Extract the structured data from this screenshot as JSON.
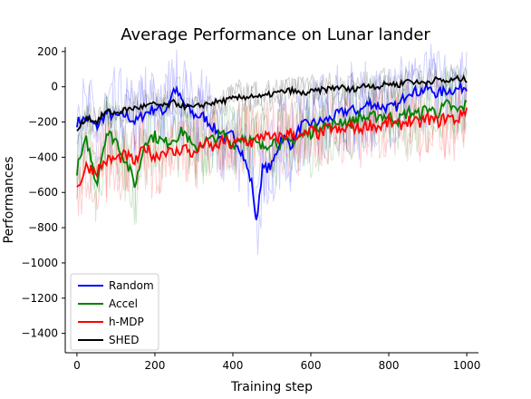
{
  "chart_data": {
    "type": "line",
    "title": "Average Performance on Lunar lander",
    "xlabel": "Training step",
    "ylabel": "Performances",
    "xlim": [
      -30,
      1030
    ],
    "ylim": [
      -1510,
      225
    ],
    "xticks": [
      0,
      200,
      400,
      600,
      800,
      1000
    ],
    "yticks": [
      -1400,
      -1200,
      -1000,
      -800,
      -600,
      -400,
      -200,
      0,
      200
    ],
    "xtick_labels": [
      "0",
      "200",
      "400",
      "600",
      "800",
      "1000"
    ],
    "ytick_labels": [
      "−1400",
      "−1200",
      "−1000",
      "−800",
      "−600",
      "−400",
      "−200",
      "0",
      "200"
    ],
    "grid": false,
    "legend_position": "lower-left",
    "series": [
      {
        "name": "Random",
        "color": "#0000ff",
        "x": [
          0,
          25,
          50,
          75,
          100,
          125,
          150,
          175,
          200,
          225,
          250,
          275,
          300,
          325,
          350,
          375,
          400,
          425,
          450,
          460,
          475,
          500,
          525,
          550,
          575,
          600,
          625,
          650,
          675,
          700,
          725,
          750,
          775,
          800,
          825,
          850,
          875,
          900,
          925,
          950,
          975,
          1000
        ],
        "y": [
          -200,
          -180,
          -230,
          -150,
          -170,
          -160,
          -200,
          -150,
          -120,
          -140,
          -10,
          -100,
          -160,
          -170,
          -230,
          -300,
          -270,
          -380,
          -560,
          -780,
          -470,
          -450,
          -280,
          -330,
          -220,
          -210,
          -200,
          -180,
          -150,
          -130,
          -140,
          -90,
          -110,
          -120,
          -110,
          -20,
          -30,
          -10,
          -40,
          -20,
          -15,
          5
        ]
      },
      {
        "name": "Accel",
        "color": "#008000",
        "x": [
          0,
          25,
          50,
          75,
          100,
          125,
          150,
          175,
          200,
          225,
          250,
          275,
          300,
          325,
          350,
          375,
          400,
          425,
          450,
          475,
          500,
          525,
          550,
          575,
          600,
          625,
          650,
          675,
          700,
          725,
          750,
          775,
          800,
          825,
          850,
          875,
          900,
          925,
          950,
          975,
          1000
        ],
        "y": [
          -470,
          -300,
          -550,
          -260,
          -300,
          -420,
          -560,
          -300,
          -280,
          -320,
          -290,
          -250,
          -360,
          -310,
          -300,
          -270,
          -330,
          -280,
          -310,
          -350,
          -300,
          -330,
          -310,
          -280,
          -260,
          -210,
          -230,
          -190,
          -210,
          -170,
          -180,
          -160,
          -170,
          -190,
          -140,
          -160,
          -120,
          -150,
          -100,
          -140,
          -100
        ]
      },
      {
        "name": "h-MDP",
        "color": "#ff0000",
        "x": [
          0,
          25,
          50,
          75,
          100,
          125,
          150,
          175,
          200,
          225,
          250,
          275,
          300,
          325,
          350,
          375,
          400,
          425,
          450,
          475,
          500,
          525,
          550,
          575,
          600,
          625,
          650,
          675,
          700,
          725,
          750,
          775,
          800,
          825,
          850,
          875,
          900,
          925,
          950,
          975,
          1000
        ],
        "y": [
          -580,
          -450,
          -480,
          -420,
          -410,
          -390,
          -430,
          -340,
          -400,
          -360,
          -380,
          -340,
          -390,
          -320,
          -350,
          -310,
          -330,
          -300,
          -320,
          -270,
          -300,
          -280,
          -260,
          -290,
          -250,
          -270,
          -230,
          -260,
          -220,
          -240,
          -210,
          -230,
          -200,
          -220,
          -190,
          -210,
          -180,
          -200,
          -170,
          -190,
          -120
        ]
      },
      {
        "name": "SHED",
        "color": "#000000",
        "x": [
          0,
          25,
          50,
          75,
          100,
          125,
          150,
          175,
          200,
          225,
          250,
          275,
          300,
          325,
          350,
          375,
          400,
          425,
          450,
          475,
          500,
          525,
          550,
          575,
          600,
          625,
          650,
          675,
          700,
          725,
          750,
          775,
          800,
          825,
          850,
          875,
          900,
          925,
          950,
          975,
          1000
        ],
        "y": [
          -250,
          -170,
          -200,
          -140,
          -150,
          -130,
          -120,
          -110,
          -100,
          -110,
          -90,
          -110,
          -120,
          -100,
          -90,
          -80,
          -70,
          -60,
          -50,
          -60,
          -40,
          -30,
          -20,
          -40,
          -30,
          -20,
          -10,
          0,
          -20,
          0,
          10,
          0,
          20,
          10,
          40,
          20,
          30,
          40,
          30,
          45,
          40
        ]
      }
    ]
  }
}
